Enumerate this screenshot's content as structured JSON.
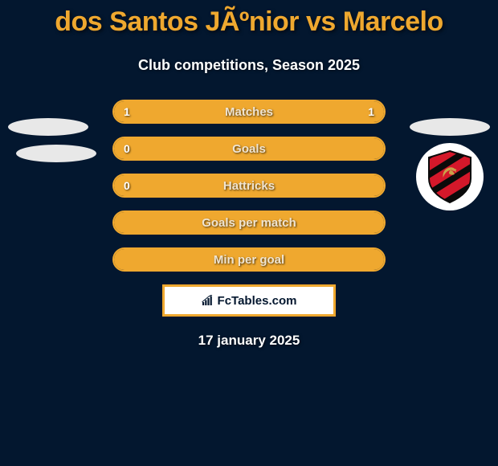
{
  "title": "dos Santos JÃºnior vs Marcelo",
  "subtitle": "Club competitions, Season 2025",
  "stats": [
    {
      "label": "Matches",
      "left_value": "1",
      "right_value": "1",
      "left_fill_pct": 50,
      "right_fill_pct": 50
    },
    {
      "label": "Goals",
      "left_value": "0",
      "right_value": "",
      "left_fill_pct": 0,
      "right_fill_pct": 100
    },
    {
      "label": "Hattricks",
      "left_value": "0",
      "right_value": "",
      "left_fill_pct": 0,
      "right_fill_pct": 100
    },
    {
      "label": "Goals per match",
      "left_value": "",
      "right_value": "",
      "left_fill_pct": 0,
      "right_fill_pct": 100
    },
    {
      "label": "Min per goal",
      "left_value": "",
      "right_value": "",
      "left_fill_pct": 0,
      "right_fill_pct": 100
    }
  ],
  "fctables_label": "FcTables.com",
  "date": "17 january 2025",
  "colors": {
    "background": "#03172f",
    "accent": "#efa82f",
    "shield_red": "#d4182a",
    "shield_black": "#0a0a0a",
    "shield_gold": "#c9a24a"
  }
}
